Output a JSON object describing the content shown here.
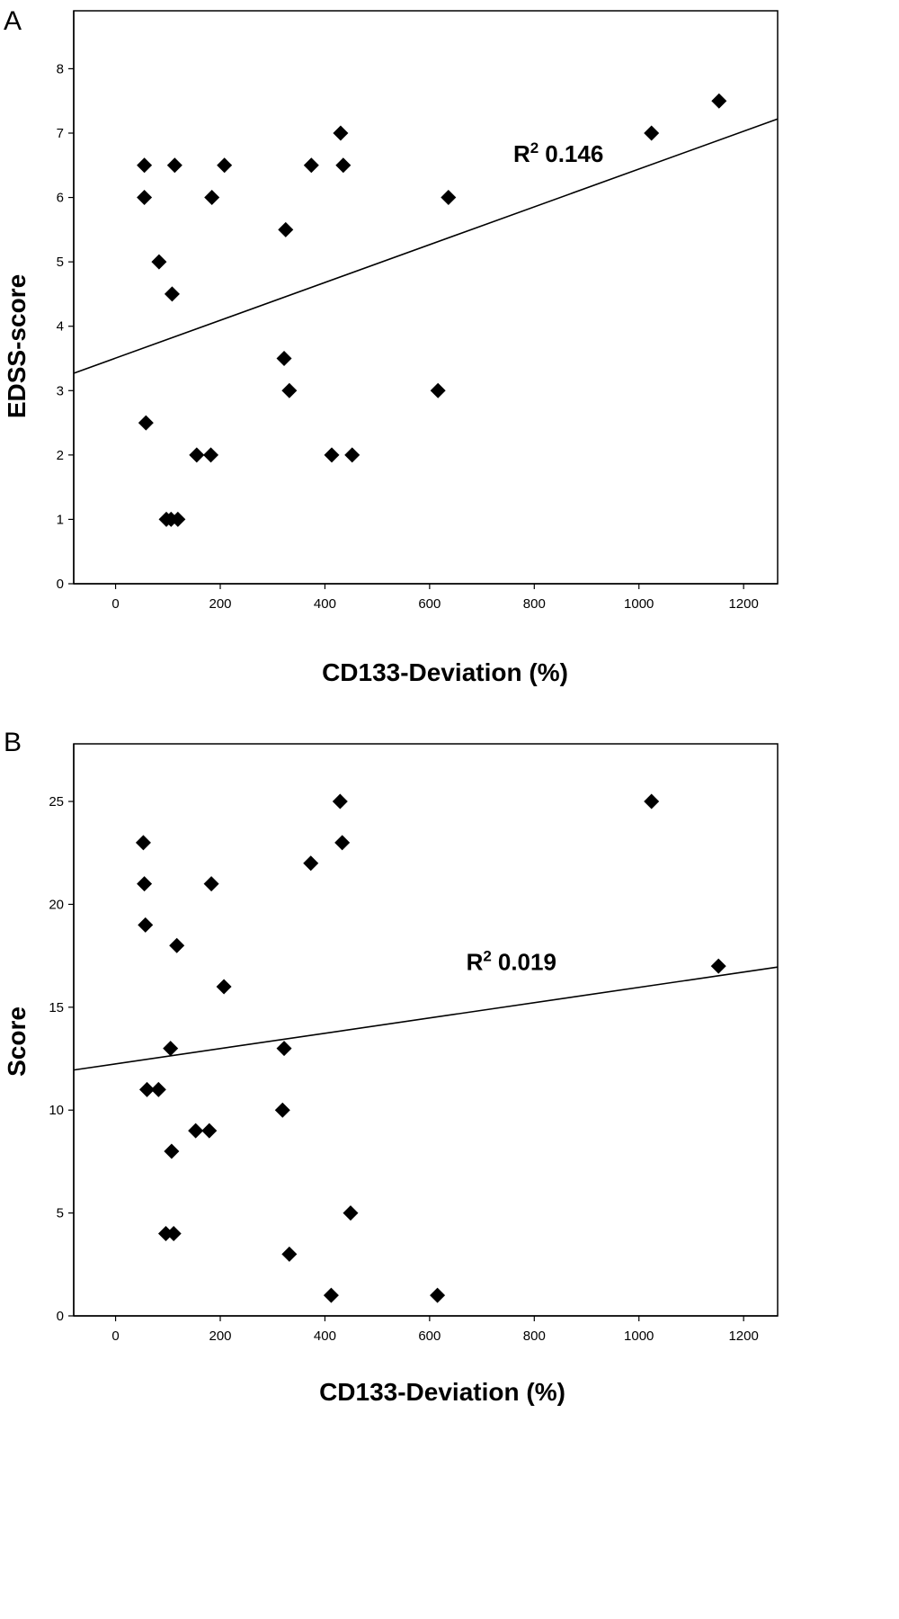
{
  "chart_data": [
    {
      "type": "scatter",
      "panel": "A",
      "xlabel": "CD133-Deviation (%)",
      "ylabel": "EDSS-score",
      "xlim": [
        -80,
        1265
      ],
      "ylim": [
        0,
        8.9
      ],
      "x_ticks": [
        0,
        200,
        400,
        600,
        800,
        1000,
        1200
      ],
      "y_ticks": [
        0,
        1,
        2,
        3,
        4,
        5,
        6,
        7,
        8
      ],
      "points": [
        {
          "x": 55,
          "y": 6.5
        },
        {
          "x": 113,
          "y": 6.5
        },
        {
          "x": 208,
          "y": 6.5
        },
        {
          "x": 55,
          "y": 6.0
        },
        {
          "x": 184,
          "y": 6.0
        },
        {
          "x": 83,
          "y": 5.0
        },
        {
          "x": 108,
          "y": 4.5
        },
        {
          "x": 58,
          "y": 2.5
        },
        {
          "x": 97,
          "y": 1.0
        },
        {
          "x": 106,
          "y": 1.0
        },
        {
          "x": 119,
          "y": 1.0
        },
        {
          "x": 155,
          "y": 2.0
        },
        {
          "x": 182,
          "y": 2.0
        },
        {
          "x": 374,
          "y": 6.5
        },
        {
          "x": 430,
          "y": 7.0
        },
        {
          "x": 435,
          "y": 6.5
        },
        {
          "x": 325,
          "y": 5.5
        },
        {
          "x": 322,
          "y": 3.5
        },
        {
          "x": 332,
          "y": 3.0
        },
        {
          "x": 413,
          "y": 2.0
        },
        {
          "x": 452,
          "y": 2.0
        },
        {
          "x": 616,
          "y": 3.0
        },
        {
          "x": 636,
          "y": 6.0
        },
        {
          "x": 1024,
          "y": 7.0
        },
        {
          "x": 1153,
          "y": 7.5
        }
      ],
      "fit_line": {
        "x": [
          -80,
          1265
        ],
        "y": [
          3.27,
          7.22
        ]
      },
      "annotation": {
        "label": "R",
        "superscript": "2",
        "value": "0.146",
        "x": 760,
        "y": 6.55
      }
    },
    {
      "type": "scatter",
      "panel": "B",
      "xlabel": "CD133-Deviation (%)",
      "ylabel": "Score",
      "xlim": [
        -80,
        1265
      ],
      "ylim": [
        0,
        27.8
      ],
      "x_ticks": [
        0,
        200,
        400,
        600,
        800,
        1000,
        1200
      ],
      "y_ticks": [
        0,
        5,
        10,
        15,
        20,
        25
      ],
      "points": [
        {
          "x": 53,
          "y": 23
        },
        {
          "x": 55,
          "y": 21
        },
        {
          "x": 57,
          "y": 19
        },
        {
          "x": 117,
          "y": 18
        },
        {
          "x": 183,
          "y": 21
        },
        {
          "x": 207,
          "y": 16
        },
        {
          "x": 105,
          "y": 13
        },
        {
          "x": 60,
          "y": 11
        },
        {
          "x": 82,
          "y": 11
        },
        {
          "x": 153,
          "y": 9
        },
        {
          "x": 179,
          "y": 9
        },
        {
          "x": 107,
          "y": 8
        },
        {
          "x": 96,
          "y": 4
        },
        {
          "x": 111,
          "y": 4
        },
        {
          "x": 322,
          "y": 13
        },
        {
          "x": 319,
          "y": 10
        },
        {
          "x": 332,
          "y": 3
        },
        {
          "x": 373,
          "y": 22
        },
        {
          "x": 429,
          "y": 25
        },
        {
          "x": 433,
          "y": 23
        },
        {
          "x": 412,
          "y": 1
        },
        {
          "x": 449,
          "y": 5
        },
        {
          "x": 615,
          "y": 1
        },
        {
          "x": 1024,
          "y": 25
        },
        {
          "x": 1152,
          "y": 17
        }
      ],
      "fit_line": {
        "x": [
          -80,
          1265
        ],
        "y": [
          11.95,
          16.95
        ]
      },
      "annotation": {
        "label": "R",
        "superscript": "2",
        "value": "0.019",
        "x": 670,
        "y": 16.8
      }
    }
  ]
}
